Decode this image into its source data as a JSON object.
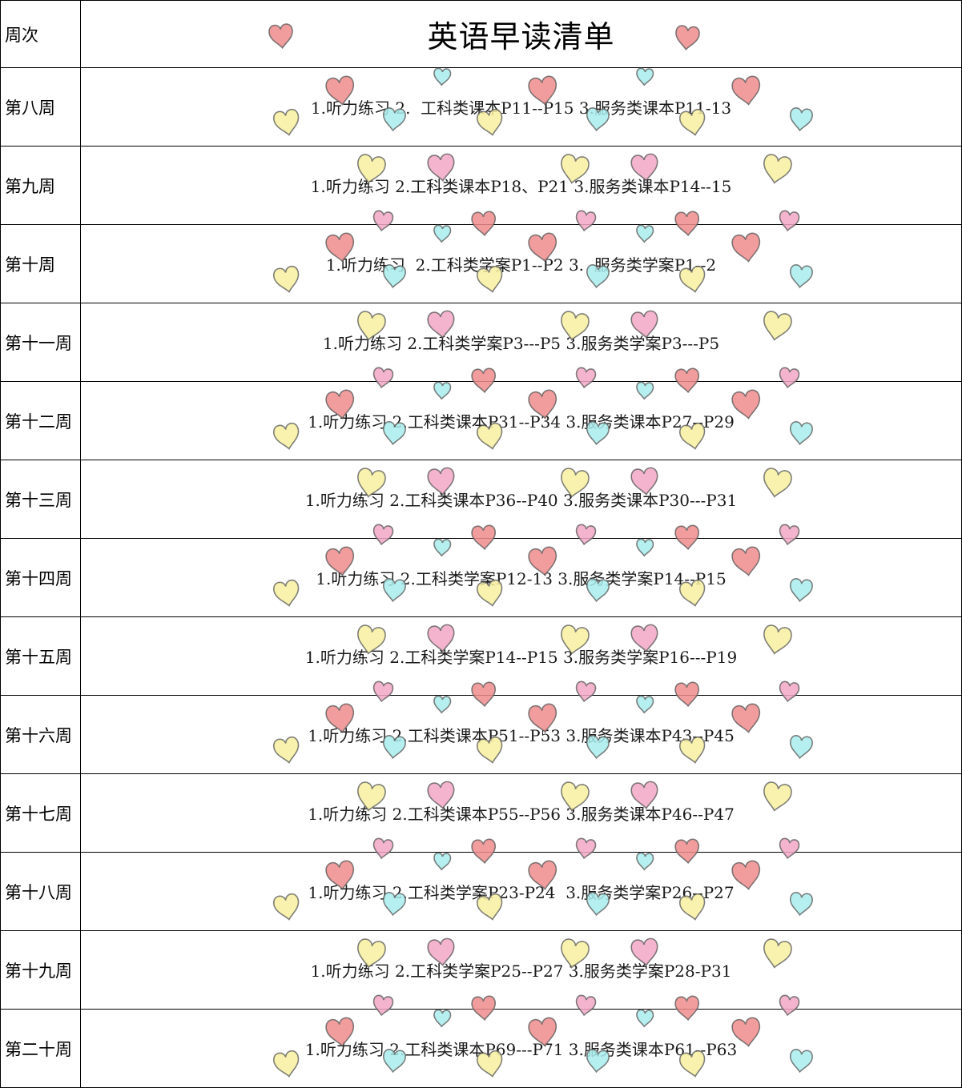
{
  "table": {
    "header_label": "周次",
    "title": "英语早读清单",
    "rows": [
      {
        "week": "第八周",
        "plan": "1.听力练习 2.  工科类课本P11--P15 3.服务类课本P11-13"
      },
      {
        "week": "第九周",
        "plan": "1.听力练习 2.工科类课本P18、P21 3.服务类课本P14--15"
      },
      {
        "week": "第十周",
        "plan": "1.听力练习  2.工科类学案P1--P2 3.  服务类学案P1--2"
      },
      {
        "week": "第十一周",
        "plan": "1.听力练习 2.工科类学案P3---P5 3.服务类学案P3---P5"
      },
      {
        "week": "第十二周",
        "plan": "1.听力练习 2.工科类课本P31--P34 3.服务类课本P27--P29"
      },
      {
        "week": "第十三周",
        "plan": "1.听力练习 2.工科类课本P36--P40 3.服务类课本P30---P31"
      },
      {
        "week": "第十四周",
        "plan": "1.听力练习 2.工科类学案P12-13 3.服务类学案P14--P15"
      },
      {
        "week": "第十五周",
        "plan": "1.听力练习 2.工科类学案P14--P15 3.服务类学案P16---P19"
      },
      {
        "week": "第十六周",
        "plan": "1.听力练习 2.工科类课本P51--P53 3.服务类课本P43--P45"
      },
      {
        "week": "第十七周",
        "plan": "1.听力练习 2.工科类课本P55--P56 3.服务类课本P46--P47"
      },
      {
        "week": "第十八周",
        "plan": "1.听力练习 2.工科类学案P23-P24  3.服务类学案P26--P27"
      },
      {
        "week": "第十九周",
        "plan": "1.听力练习 2.工科类学案P25--P27 3.服务类学案P28-P31"
      },
      {
        "week": "第二十周",
        "plan": "1.听力练习 2.工科类课本P69---P71 3.服务类课本P61--P63"
      }
    ]
  },
  "decoration": {
    "heart_colors": {
      "red": "#f08c8c",
      "pink": "#f2a7c4",
      "yellow": "#f7f0a0",
      "cyan": "#a9ecec"
    }
  }
}
